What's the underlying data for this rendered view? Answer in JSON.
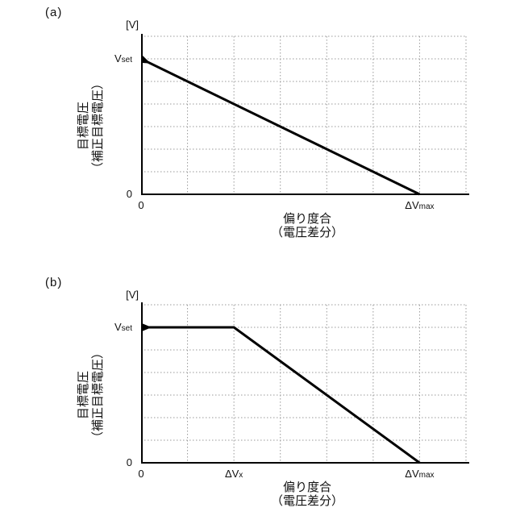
{
  "figure": {
    "background_color": "#ffffff",
    "text_color": "#111111"
  },
  "charts": [
    {
      "panel_label": "(a)"
    },
    {
      "panel_label": "(b)"
    }
  ],
  "chart_data": [
    {
      "id": "a",
      "type": "line",
      "grid": "dotted",
      "line_color": "#000000",
      "grid_color": "#999999",
      "x_axis": {
        "label_lines": [
          "偏り度合",
          "（電圧差分）"
        ],
        "range_units": [
          0,
          7
        ],
        "ticks": [
          {
            "pos": 0,
            "main": "0",
            "sub": "",
            "name": "origin"
          },
          {
            "pos": 6,
            "main": "ΔV",
            "sub": "max",
            "name": "delta-v-max"
          }
        ]
      },
      "y_axis": {
        "unit": "[V]",
        "label_lines": [
          "目標電圧",
          "（補正目標電圧）"
        ],
        "range_units": [
          0,
          7
        ],
        "ticks": [
          {
            "pos": 0,
            "main": "0",
            "sub": "",
            "name": "zero"
          },
          {
            "pos": 6,
            "main": "V",
            "sub": "set",
            "name": "vset"
          }
        ]
      },
      "series": [
        {
          "points_units": [
            [
              0,
              6
            ],
            [
              6,
              0
            ]
          ]
        }
      ]
    },
    {
      "id": "b",
      "type": "line",
      "grid": "dotted",
      "line_color": "#000000",
      "grid_color": "#999999",
      "x_axis": {
        "label_lines": [
          "偏り度合",
          "（電圧差分）"
        ],
        "range_units": [
          0,
          7
        ],
        "ticks": [
          {
            "pos": 0,
            "main": "0",
            "sub": "",
            "name": "origin"
          },
          {
            "pos": 2,
            "main": "ΔV",
            "sub": "x",
            "name": "delta-v-x"
          },
          {
            "pos": 6,
            "main": "ΔV",
            "sub": "max",
            "name": "delta-v-max"
          }
        ]
      },
      "y_axis": {
        "unit": "[V]",
        "label_lines": [
          "目標電圧",
          "（補正目標電圧）"
        ],
        "range_units": [
          0,
          7
        ],
        "ticks": [
          {
            "pos": 0,
            "main": "0",
            "sub": "",
            "name": "zero"
          },
          {
            "pos": 6,
            "main": "V",
            "sub": "set",
            "name": "vset"
          }
        ]
      },
      "series": [
        {
          "points_units": [
            [
              0,
              6
            ],
            [
              2,
              6
            ],
            [
              6,
              0
            ]
          ]
        }
      ]
    }
  ]
}
